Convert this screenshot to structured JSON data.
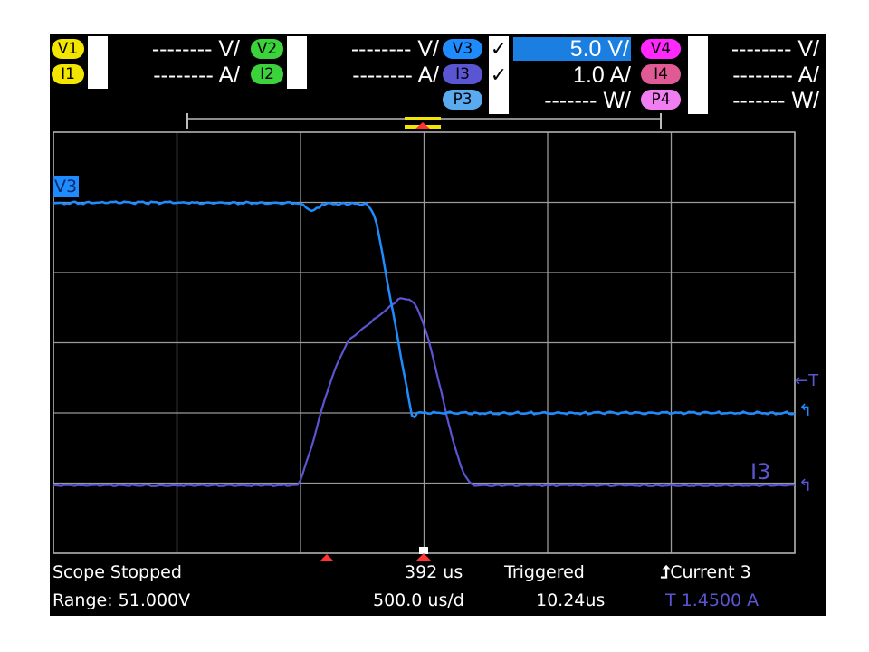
{
  "colors": {
    "ch1": "#f2e600",
    "ch2": "#3cd23c",
    "ch3_voltage": "#1e8cff",
    "ch3_current": "#5a55d2",
    "ch3_power": "#5aaaf0",
    "ch4_v": "#ff28ff",
    "ch4_i": "#e05a96",
    "ch4_p": "#f07ef0",
    "grid": "#c8c8c8",
    "trigger_marker": "#ff3333"
  },
  "channels": {
    "v1": {
      "badge": "V1",
      "scale": "-------- V/"
    },
    "i1": {
      "badge": "I1",
      "scale": "-------- A/"
    },
    "v2": {
      "badge": "V2",
      "scale": "-------- V/"
    },
    "i2": {
      "badge": "I2",
      "scale": "-------- A/"
    },
    "v3": {
      "badge": "V3",
      "check": "✓",
      "scale": "5.0 V/"
    },
    "i3": {
      "badge": "I3",
      "check": "✓",
      "scale": "1.0 A/"
    },
    "p3": {
      "badge": "P3",
      "scale": "------- W/"
    },
    "v4": {
      "badge": "V4",
      "scale": "-------- V/"
    },
    "i4": {
      "badge": "I4",
      "scale": "-------- A/"
    },
    "p4": {
      "badge": "P4",
      "scale": "------- W/"
    }
  },
  "traces": {
    "v3_label": "V3",
    "i3_label": "I3",
    "trigger_arrow": "←T",
    "ground_marker_v3": "↰",
    "ground_marker_i3": "↰"
  },
  "status": {
    "state": "Scope Stopped",
    "range": "Range: 51.000V",
    "delay": "392 us",
    "timebase": "500.0 us/d",
    "trigger_state": "Triggered",
    "trigger_time": "10.24us",
    "trigger_source": "Current 3",
    "trigger_level": "T 1.4500 A"
  }
}
